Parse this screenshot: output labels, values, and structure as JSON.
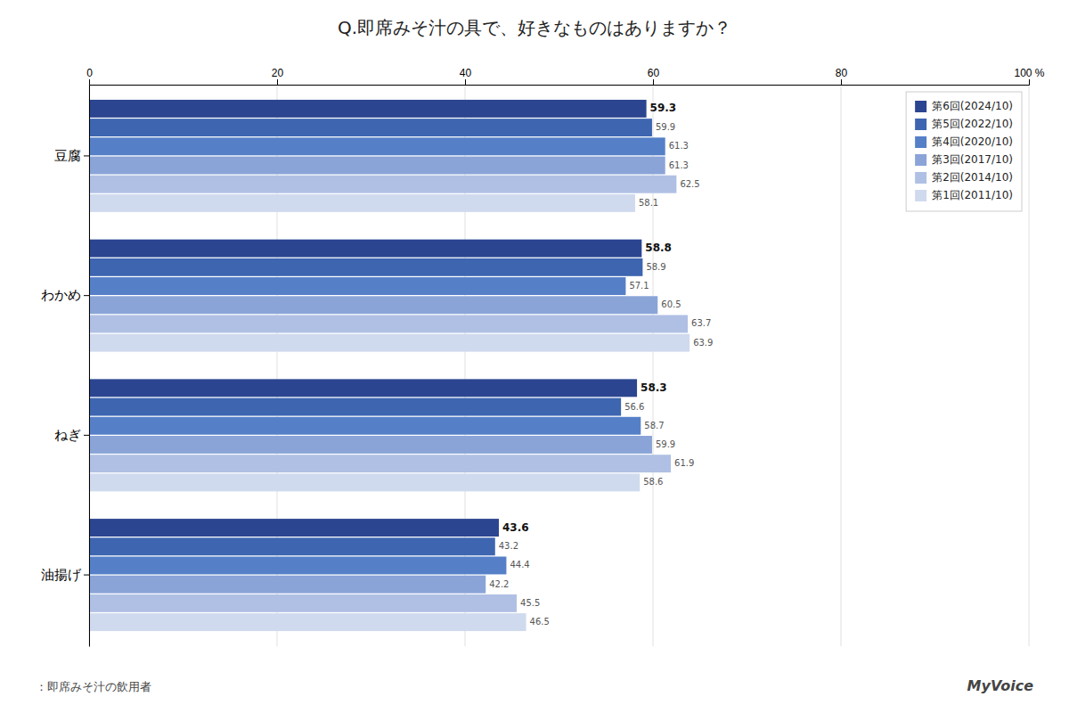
{
  "chart_data": {
    "type": "bar",
    "orientation": "horizontal",
    "title": "Q.即席みそ汁の具で、好きなものはありますか？",
    "categories": [
      "豆腐",
      "わかめ",
      "ねぎ",
      "油揚げ"
    ],
    "series": [
      {
        "name": "第6回(2024/10)",
        "color": "#2b4590",
        "values": [
          59.3,
          58.8,
          58.3,
          43.6
        ]
      },
      {
        "name": "第5回(2022/10)",
        "color": "#3d65b0",
        "values": [
          59.9,
          58.9,
          56.6,
          43.2
        ]
      },
      {
        "name": "第4回(2020/10)",
        "color": "#5580c8",
        "values": [
          61.3,
          57.1,
          58.7,
          44.4
        ]
      },
      {
        "name": "第3回(2017/10)",
        "color": "#8aa4d8",
        "values": [
          61.3,
          60.5,
          59.9,
          42.2
        ]
      },
      {
        "name": "第2回(2014/10)",
        "color": "#b0c0e4",
        "values": [
          62.5,
          63.7,
          61.9,
          45.5
        ]
      },
      {
        "name": "第1回(2011/10)",
        "color": "#d0daee",
        "values": [
          58.1,
          63.9,
          58.6,
          46.5
        ]
      }
    ],
    "xlim": [
      0,
      100
    ],
    "xticks": [
      0,
      20,
      40,
      60,
      80,
      {
        "value": 100,
        "label": "100 %"
      }
    ],
    "grid": true,
    "legend": "upper right",
    "data_labels": true,
    "annotations": [
      "：即席みそ汁の飲用者",
      "MyVoice"
    ]
  }
}
